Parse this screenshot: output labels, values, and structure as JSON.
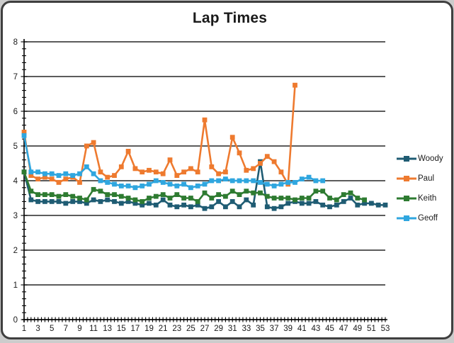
{
  "window": {
    "type": "chart-panel"
  },
  "chart_data": {
    "type": "line",
    "title": "Lap Times",
    "xlabel": "",
    "ylabel": "",
    "x_range": [
      1,
      53
    ],
    "x_tick_labels": [
      "1",
      "3",
      "5",
      "7",
      "9",
      "11",
      "13",
      "15",
      "17",
      "19",
      "21",
      "23",
      "25",
      "27",
      "29",
      "31",
      "33",
      "35",
      "37",
      "39",
      "41",
      "43",
      "45",
      "47",
      "49",
      "51",
      "53"
    ],
    "ylim": [
      0,
      8
    ],
    "y_tick_labels": [
      "0",
      "1",
      "2",
      "3",
      "4",
      "5",
      "6",
      "7",
      "8"
    ],
    "y_minor_tick_step": 0.2,
    "x_minor_tick_step": 0.5,
    "grid": "horizontal",
    "legend_position": "right",
    "marker": "square",
    "series": [
      {
        "name": "Woody",
        "color": "#1F5C73",
        "start_x": 1,
        "values": [
          4.25,
          3.45,
          3.4,
          3.4,
          3.4,
          3.4,
          3.35,
          3.4,
          3.4,
          3.35,
          3.45,
          3.4,
          3.45,
          3.4,
          3.35,
          3.4,
          3.35,
          3.3,
          3.35,
          3.3,
          3.45,
          3.3,
          3.25,
          3.3,
          3.25,
          3.3,
          3.2,
          3.25,
          3.4,
          3.25,
          3.4,
          3.25,
          3.45,
          3.3,
          4.55,
          3.25,
          3.2,
          3.25,
          3.35,
          3.4,
          3.35,
          3.35,
          3.4,
          3.3,
          3.25,
          3.3,
          3.4,
          3.5,
          3.3,
          3.35,
          3.35,
          3.3,
          3.3
        ]
      },
      {
        "name": "Paul",
        "color": "#EE7A2F",
        "start_x": 1,
        "values": [
          5.4,
          4.15,
          4.05,
          4.1,
          4.05,
          3.95,
          4.05,
          4.1,
          3.95,
          5.0,
          5.1,
          4.25,
          4.1,
          4.15,
          4.4,
          4.85,
          4.35,
          4.25,
          4.3,
          4.25,
          4.2,
          4.6,
          4.15,
          4.25,
          4.35,
          4.25,
          5.75,
          4.4,
          4.2,
          4.25,
          5.25,
          4.8,
          4.3,
          4.35,
          4.5,
          4.7,
          4.55,
          4.25,
          3.9,
          6.75
        ]
      },
      {
        "name": "Keith",
        "color": "#2E7B31",
        "start_x": 1,
        "values": [
          4.25,
          3.7,
          3.6,
          3.6,
          3.6,
          3.55,
          3.6,
          3.55,
          3.5,
          3.45,
          3.75,
          3.7,
          3.6,
          3.6,
          3.55,
          3.5,
          3.45,
          3.4,
          3.5,
          3.55,
          3.6,
          3.5,
          3.6,
          3.5,
          3.5,
          3.4,
          3.65,
          3.5,
          3.6,
          3.55,
          3.7,
          3.6,
          3.7,
          3.65,
          3.65,
          3.55,
          3.5,
          3.5,
          3.5,
          3.45,
          3.5,
          3.5,
          3.7,
          3.7,
          3.5,
          3.45,
          3.6,
          3.65,
          3.5,
          3.45
        ]
      },
      {
        "name": "Geoff",
        "color": "#2FA6DF",
        "start_x": 1,
        "values": [
          5.3,
          4.25,
          4.25,
          4.2,
          4.2,
          4.15,
          4.2,
          4.15,
          4.2,
          4.4,
          4.2,
          4.0,
          3.95,
          3.9,
          3.85,
          3.85,
          3.8,
          3.85,
          3.9,
          4.0,
          3.95,
          3.9,
          3.85,
          3.9,
          3.8,
          3.85,
          3.9,
          4.0,
          4.0,
          4.05,
          4.0,
          4.0,
          4.0,
          4.0,
          3.95,
          3.9,
          3.85,
          3.9,
          3.95,
          3.95,
          4.05,
          4.1,
          4.0,
          4.0
        ]
      }
    ]
  }
}
